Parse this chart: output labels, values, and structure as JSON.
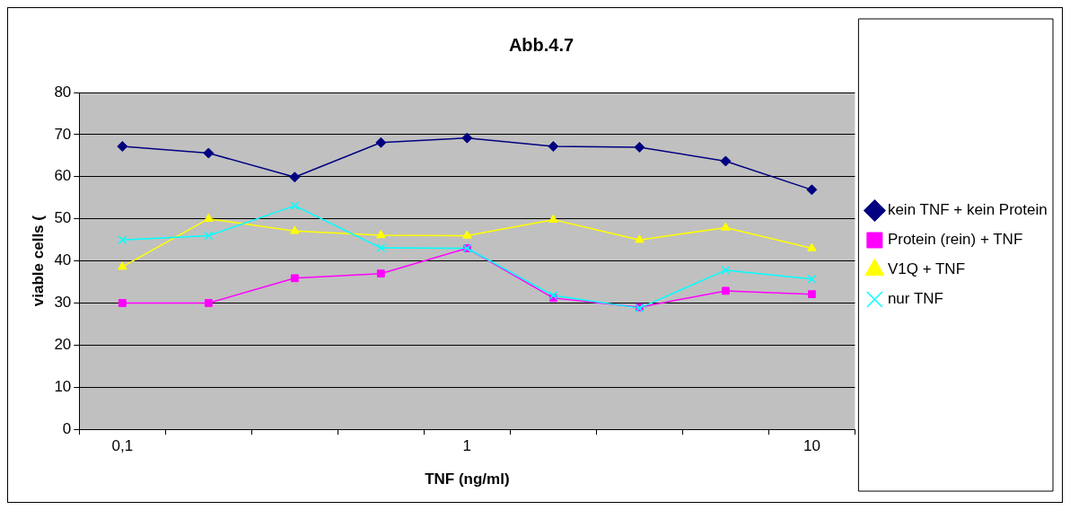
{
  "chart_data": {
    "type": "line",
    "title": "Abb.4.7",
    "xlabel": "TNF (ng/ml)",
    "ylabel": "viable cells (",
    "categories": [
      "0,1",
      null,
      null,
      null,
      "1",
      null,
      null,
      null,
      "10"
    ],
    "series": [
      {
        "name": "kein TNF + kein Protein",
        "color": "#000080",
        "marker": "diamond",
        "values": [
          67.2,
          65.6,
          59.9,
          68.1,
          69.2,
          67.2,
          67,
          63.7,
          56.9
        ]
      },
      {
        "name": "Protein (rein) + TNF",
        "color": "#ff00ff",
        "marker": "square",
        "values": [
          30,
          30,
          35.9,
          37,
          43,
          31.2,
          29,
          32.9,
          32.1
        ]
      },
      {
        "name": "V1Q + TNF",
        "color": "#ffff00",
        "marker": "triangle",
        "values": [
          38.6,
          50,
          47.1,
          46.1,
          46,
          49.8,
          45,
          47.9,
          43
        ]
      },
      {
        "name": "nur TNF",
        "color": "#00ffff",
        "marker": "cross",
        "values": [
          45,
          46,
          53.1,
          43.1,
          43,
          31.8,
          28.8,
          37.8,
          35.7
        ]
      }
    ],
    "ylim": [
      0,
      80
    ],
    "yticks": [
      0,
      10,
      20,
      30,
      40,
      50,
      60,
      70,
      80
    ],
    "grid": "y",
    "legend": "right",
    "line_style": "solid"
  }
}
